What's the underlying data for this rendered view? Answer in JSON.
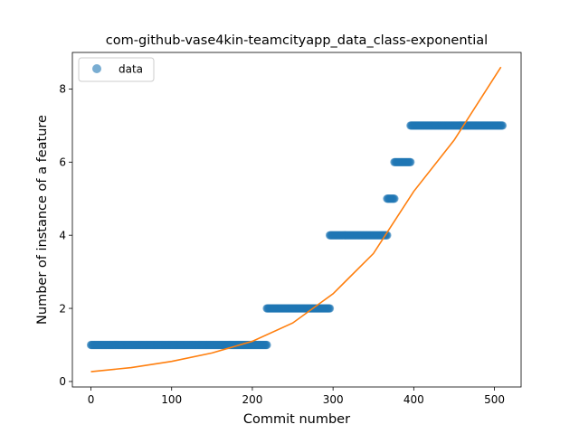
{
  "chart_data": {
    "type": "scatter",
    "title": "com-github-vase4kin-teamcityapp_data_class-exponential",
    "xlabel": "Commit number",
    "ylabel": "Number of instance of a feature",
    "xlim": [
      -23,
      533
    ],
    "ylim": [
      -0.15,
      9.0
    ],
    "x_ticks": [
      0,
      100,
      200,
      300,
      400,
      500
    ],
    "y_ticks": [
      0,
      2,
      4,
      6,
      8
    ],
    "grid": false,
    "legend": {
      "placement": "top-left",
      "entries": [
        "data"
      ]
    },
    "colors": {
      "data": "#1f77b4",
      "fit": "#ff7f0e"
    },
    "series": [
      {
        "name": "data",
        "kind": "scatter",
        "segments": [
          {
            "x_start": 0,
            "x_end": 218,
            "y": 1
          },
          {
            "x_start": 218,
            "x_end": 296,
            "y": 2
          },
          {
            "x_start": 296,
            "x_end": 367,
            "y": 4
          },
          {
            "x_start": 367,
            "x_end": 376,
            "y": 5
          },
          {
            "x_start": 376,
            "x_end": 396,
            "y": 6
          },
          {
            "x_start": 396,
            "x_end": 510,
            "y": 7
          }
        ]
      },
      {
        "kind": "line",
        "points": [
          [
            0,
            0.27
          ],
          [
            50,
            0.38
          ],
          [
            100,
            0.55
          ],
          [
            150,
            0.78
          ],
          [
            200,
            1.1
          ],
          [
            250,
            1.6
          ],
          [
            300,
            2.4
          ],
          [
            350,
            3.5
          ],
          [
            400,
            5.2
          ],
          [
            450,
            6.6
          ],
          [
            508,
            8.6
          ]
        ]
      }
    ]
  }
}
